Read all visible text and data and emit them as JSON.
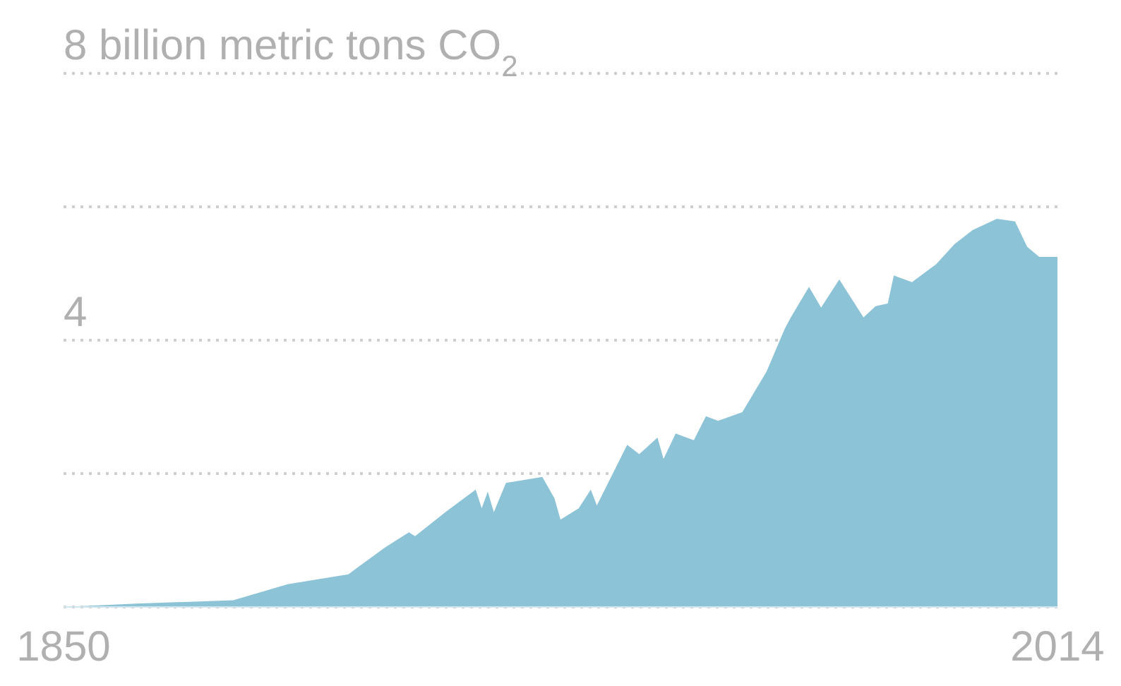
{
  "chart_data": {
    "type": "area",
    "x": [
      1850,
      1862,
      1878,
      1887,
      1897,
      1903,
      1907,
      1908,
      1913,
      1918,
      1919,
      1920,
      1921,
      1923,
      1929,
      1931,
      1932,
      1935,
      1937,
      1938,
      1943,
      1945,
      1948,
      1949,
      1951,
      1954,
      1956,
      1958,
      1962,
      1966,
      1969,
      1970,
      1973,
      1975,
      1978,
      1982,
      1984,
      1986,
      1987,
      1990,
      1994,
      1997,
      2000,
      2004,
      2007,
      2009,
      2011,
      2014
    ],
    "series": [
      {
        "color": "#8cc3d6",
        "values": [
          0.0,
          0.05,
          0.1,
          0.34,
          0.49,
          0.89,
          1.12,
          1.06,
          1.42,
          1.76,
          1.48,
          1.73,
          1.42,
          1.86,
          1.95,
          1.63,
          1.31,
          1.48,
          1.76,
          1.52,
          2.43,
          2.29,
          2.54,
          2.22,
          2.6,
          2.5,
          2.86,
          2.79,
          2.92,
          3.53,
          4.17,
          4.34,
          4.8,
          4.49,
          4.91,
          4.34,
          4.51,
          4.55,
          4.97,
          4.87,
          5.14,
          5.44,
          5.65,
          5.82,
          5.78,
          5.4,
          5.25,
          5.25
        ]
      }
    ],
    "xlim": [
      1850,
      2014
    ],
    "xticks": [
      1850,
      2014
    ],
    "ylim": [
      0,
      8
    ],
    "yticks": [
      {
        "value": 2,
        "label": null
      },
      {
        "value": 4,
        "label": "4"
      },
      {
        "value": 6,
        "label": null
      },
      8
    ],
    "ylabel": "billion metric tons CO$_{2}$",
    "grid": "y"
  }
}
